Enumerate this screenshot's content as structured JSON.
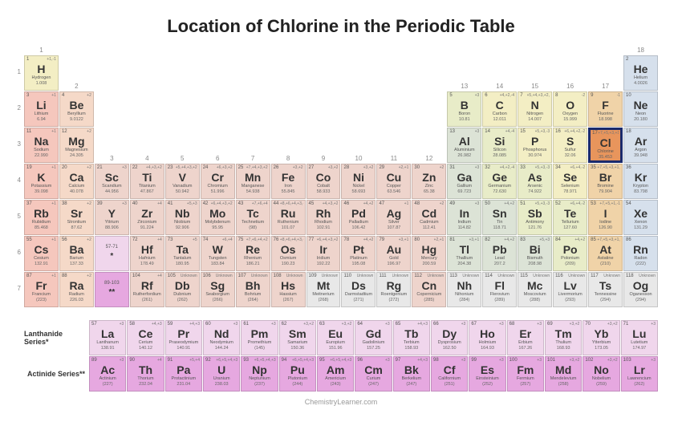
{
  "title": "Location of Chlorine in the Periodic Table",
  "footer": "ChemistryLearner.com",
  "highlight_number": 17,
  "colors": {
    "alkali": "#f5c7bd",
    "alkaline": "#f5d9c8",
    "transition": "#eed4cc",
    "post": "#dce3d6",
    "metalloid": "#e8ecc8",
    "nonmetal": "#f3eec4",
    "halogen": "#f0d3a8",
    "noble": "#d6e0ec",
    "lanth": "#f0d6ec",
    "act": "#e6a8e0",
    "highlight_bg": "#e8955c",
    "highlight_border": "#1a2a6c",
    "unknown": "#e8e8e8"
  },
  "series": {
    "lanth_label": "Lanthanide Series*",
    "act_label": "Actinide Series**"
  },
  "group_row1": {
    "1": "1",
    "18": "18"
  },
  "group_row2": {
    "2": "2",
    "13": "13",
    "14": "14",
    "15": "15",
    "16": "16",
    "17": "17"
  },
  "group_row4": {
    "3": "3",
    "4": "4",
    "5": "5",
    "6": "6",
    "7": "7",
    "8": "8",
    "9": "9",
    "10": "10",
    "11": "11",
    "12": "12"
  },
  "elements": [
    {
      "n": 1,
      "s": "H",
      "name": "Hydrogen",
      "m": "1.008",
      "ox": "+1,-1",
      "r": 1,
      "c": 1,
      "cat": "nonmetal"
    },
    {
      "n": 2,
      "s": "He",
      "name": "Helium",
      "m": "4.0026",
      "ox": "",
      "r": 1,
      "c": 18,
      "cat": "noble"
    },
    {
      "n": 3,
      "s": "Li",
      "name": "Lithium",
      "m": "6.94",
      "ox": "+1",
      "r": 2,
      "c": 1,
      "cat": "alkali"
    },
    {
      "n": 4,
      "s": "Be",
      "name": "Beryllium",
      "m": "9.0122",
      "ox": "+2",
      "r": 2,
      "c": 2,
      "cat": "alkaline"
    },
    {
      "n": 5,
      "s": "B",
      "name": "Boron",
      "m": "10.81",
      "ox": "+3",
      "r": 2,
      "c": 13,
      "cat": "metalloid"
    },
    {
      "n": 6,
      "s": "C",
      "name": "Carbon",
      "m": "12.011",
      "ox": "+4,+2,-4",
      "r": 2,
      "c": 14,
      "cat": "nonmetal"
    },
    {
      "n": 7,
      "s": "N",
      "name": "Nitrogen",
      "m": "14.007",
      "ox": "+5,+4,+3,+2,-3",
      "r": 2,
      "c": 15,
      "cat": "nonmetal"
    },
    {
      "n": 8,
      "s": "O",
      "name": "Oxygen",
      "m": "15.999",
      "ox": "-2",
      "r": 2,
      "c": 16,
      "cat": "nonmetal"
    },
    {
      "n": 9,
      "s": "F",
      "name": "Fluorine",
      "m": "18.998",
      "ox": "-1",
      "r": 2,
      "c": 17,
      "cat": "halogen"
    },
    {
      "n": 10,
      "s": "Ne",
      "name": "Neon",
      "m": "20.180",
      "ox": "",
      "r": 2,
      "c": 18,
      "cat": "noble"
    },
    {
      "n": 11,
      "s": "Na",
      "name": "Sodium",
      "m": "22.990",
      "ox": "+1",
      "r": 3,
      "c": 1,
      "cat": "alkali"
    },
    {
      "n": 12,
      "s": "Mg",
      "name": "Magnesium",
      "m": "24.305",
      "ox": "+2",
      "r": 3,
      "c": 2,
      "cat": "alkaline"
    },
    {
      "n": 13,
      "s": "Al",
      "name": "Aluminium",
      "m": "26.982",
      "ox": "+3",
      "r": 3,
      "c": 13,
      "cat": "post"
    },
    {
      "n": 14,
      "s": "Si",
      "name": "Silicon",
      "m": "28.085",
      "ox": "+4,-4",
      "r": 3,
      "c": 14,
      "cat": "metalloid"
    },
    {
      "n": 15,
      "s": "P",
      "name": "Phosphorus",
      "m": "30.974",
      "ox": "+5,+3,-3",
      "r": 3,
      "c": 15,
      "cat": "nonmetal"
    },
    {
      "n": 16,
      "s": "S",
      "name": "Sulfur",
      "m": "32.06",
      "ox": "+6,+4,+2,-2",
      "r": 3,
      "c": 16,
      "cat": "nonmetal"
    },
    {
      "n": 17,
      "s": "Cl",
      "name": "Chlorine",
      "m": "35.453",
      "ox": "+7,+5,+3,+1,-1",
      "r": 3,
      "c": 17,
      "cat": "halogen"
    },
    {
      "n": 18,
      "s": "Ar",
      "name": "Argon",
      "m": "39.948",
      "ox": "",
      "r": 3,
      "c": 18,
      "cat": "noble"
    },
    {
      "n": 19,
      "s": "K",
      "name": "Potassium",
      "m": "39.098",
      "ox": "+1",
      "r": 4,
      "c": 1,
      "cat": "alkali"
    },
    {
      "n": 20,
      "s": "Ca",
      "name": "Calcium",
      "m": "40.078",
      "ox": "+2",
      "r": 4,
      "c": 2,
      "cat": "alkaline"
    },
    {
      "n": 21,
      "s": "Sc",
      "name": "Scandium",
      "m": "44.956",
      "ox": "+3",
      "r": 4,
      "c": 3,
      "cat": "transition"
    },
    {
      "n": 22,
      "s": "Ti",
      "name": "Titanium",
      "m": "47.867",
      "ox": "+4,+3,+2",
      "r": 4,
      "c": 4,
      "cat": "transition"
    },
    {
      "n": 23,
      "s": "V",
      "name": "Vanadium",
      "m": "50.942",
      "ox": "+5,+4,+3,+2",
      "r": 4,
      "c": 5,
      "cat": "transition"
    },
    {
      "n": 24,
      "s": "Cr",
      "name": "Chromium",
      "m": "51.996",
      "ox": "+6,+3,+2",
      "r": 4,
      "c": 6,
      "cat": "transition"
    },
    {
      "n": 25,
      "s": "Mn",
      "name": "Manganese",
      "m": "54.938",
      "ox": "+7,+4,+3,+2",
      "r": 4,
      "c": 7,
      "cat": "transition"
    },
    {
      "n": 26,
      "s": "Fe",
      "name": "Iron",
      "m": "55.845",
      "ox": "+3,+2",
      "r": 4,
      "c": 8,
      "cat": "transition"
    },
    {
      "n": 27,
      "s": "Co",
      "name": "Cobalt",
      "m": "58.933",
      "ox": "+3,+2",
      "r": 4,
      "c": 9,
      "cat": "transition"
    },
    {
      "n": 28,
      "s": "Ni",
      "name": "Nickel",
      "m": "58.693",
      "ox": "+3,+2",
      "r": 4,
      "c": 10,
      "cat": "transition"
    },
    {
      "n": 29,
      "s": "Cu",
      "name": "Copper",
      "m": "63.546",
      "ox": "+2,+1",
      "r": 4,
      "c": 11,
      "cat": "transition"
    },
    {
      "n": 30,
      "s": "Zn",
      "name": "Zinc",
      "m": "65.38",
      "ox": "+2",
      "r": 4,
      "c": 12,
      "cat": "transition"
    },
    {
      "n": 31,
      "s": "Ga",
      "name": "Gallium",
      "m": "69.723",
      "ox": "+3",
      "r": 4,
      "c": 13,
      "cat": "post"
    },
    {
      "n": 32,
      "s": "Ge",
      "name": "Germanium",
      "m": "72.630",
      "ox": "+4,+2,-4",
      "r": 4,
      "c": 14,
      "cat": "metalloid"
    },
    {
      "n": 33,
      "s": "As",
      "name": "Arsenic",
      "m": "74.922",
      "ox": "+5,+3,-3",
      "r": 4,
      "c": 15,
      "cat": "metalloid"
    },
    {
      "n": 34,
      "s": "Se",
      "name": "Selenium",
      "m": "78.971",
      "ox": "+6,+4,-2",
      "r": 4,
      "c": 16,
      "cat": "nonmetal"
    },
    {
      "n": 35,
      "s": "Br",
      "name": "Bromine",
      "m": "79.904",
      "ox": "+7,+5,+3,+1,-1",
      "r": 4,
      "c": 17,
      "cat": "halogen"
    },
    {
      "n": 36,
      "s": "Kr",
      "name": "Krypton",
      "m": "83.798",
      "ox": "",
      "r": 4,
      "c": 18,
      "cat": "noble"
    },
    {
      "n": 37,
      "s": "Rb",
      "name": "Rubidium",
      "m": "85.468",
      "ox": "+1",
      "r": 5,
      "c": 1,
      "cat": "alkali"
    },
    {
      "n": 38,
      "s": "Sr",
      "name": "Strontium",
      "m": "87.62",
      "ox": "+2",
      "r": 5,
      "c": 2,
      "cat": "alkaline"
    },
    {
      "n": 39,
      "s": "Y",
      "name": "Yttrium",
      "m": "88.906",
      "ox": "+3",
      "r": 5,
      "c": 3,
      "cat": "transition"
    },
    {
      "n": 40,
      "s": "Zr",
      "name": "Zirconium",
      "m": "91.224",
      "ox": "+4",
      "r": 5,
      "c": 4,
      "cat": "transition"
    },
    {
      "n": 41,
      "s": "Nb",
      "name": "Niobium",
      "m": "92.906",
      "ox": "+5,+3",
      "r": 5,
      "c": 5,
      "cat": "transition"
    },
    {
      "n": 42,
      "s": "Mo",
      "name": "Molybdenum",
      "m": "95.95",
      "ox": "+6,+4,+3,+2",
      "r": 5,
      "c": 6,
      "cat": "transition"
    },
    {
      "n": 43,
      "s": "Tc",
      "name": "Technetium",
      "m": "(98)",
      "ox": "+7,+6,+4",
      "r": 5,
      "c": 7,
      "cat": "transition"
    },
    {
      "n": 44,
      "s": "Ru",
      "name": "Ruthenium",
      "m": "101.07",
      "ox": "+8,+6,+4,+3,+2",
      "r": 5,
      "c": 8,
      "cat": "transition"
    },
    {
      "n": 45,
      "s": "Rh",
      "name": "Rhodium",
      "m": "102.91",
      "ox": "+4,+3,+2",
      "r": 5,
      "c": 9,
      "cat": "transition"
    },
    {
      "n": 46,
      "s": "Pd",
      "name": "Palladium",
      "m": "106.42",
      "ox": "+4,+2",
      "r": 5,
      "c": 10,
      "cat": "transition"
    },
    {
      "n": 47,
      "s": "Ag",
      "name": "Silver",
      "m": "107.87",
      "ox": "+1",
      "r": 5,
      "c": 11,
      "cat": "transition"
    },
    {
      "n": 48,
      "s": "Cd",
      "name": "Cadmium",
      "m": "112.41",
      "ox": "+2",
      "r": 5,
      "c": 12,
      "cat": "transition"
    },
    {
      "n": 49,
      "s": "In",
      "name": "Indium",
      "m": "114.82",
      "ox": "+3",
      "r": 5,
      "c": 13,
      "cat": "post"
    },
    {
      "n": 50,
      "s": "Sn",
      "name": "Tin",
      "m": "118.71",
      "ox": "+4,+2",
      "r": 5,
      "c": 14,
      "cat": "post"
    },
    {
      "n": 51,
      "s": "Sb",
      "name": "Antimony",
      "m": "121.76",
      "ox": "+5,+3,-3",
      "r": 5,
      "c": 15,
      "cat": "metalloid"
    },
    {
      "n": 52,
      "s": "Te",
      "name": "Tellurium",
      "m": "127.60",
      "ox": "+6,+4,-2",
      "r": 5,
      "c": 16,
      "cat": "metalloid"
    },
    {
      "n": 53,
      "s": "I",
      "name": "Iodine",
      "m": "126.90",
      "ox": "+7,+5,+1,-1",
      "r": 5,
      "c": 17,
      "cat": "halogen"
    },
    {
      "n": 54,
      "s": "Xe",
      "name": "Xenon",
      "m": "131.29",
      "ox": "",
      "r": 5,
      "c": 18,
      "cat": "noble"
    },
    {
      "n": 55,
      "s": "Cs",
      "name": "Cesium",
      "m": "132.91",
      "ox": "+1",
      "r": 6,
      "c": 1,
      "cat": "alkali"
    },
    {
      "n": 56,
      "s": "Ba",
      "name": "Barium",
      "m": "137.33",
      "ox": "+2",
      "r": 6,
      "c": 2,
      "cat": "alkaline"
    },
    {
      "n": 0,
      "s": "*",
      "name": "57-71",
      "m": "",
      "ox": "",
      "r": 6,
      "c": 3,
      "cat": "lanth",
      "placeholder": true
    },
    {
      "n": 72,
      "s": "Hf",
      "name": "Hafnium",
      "m": "178.49",
      "ox": "+4",
      "r": 6,
      "c": 4,
      "cat": "transition"
    },
    {
      "n": 73,
      "s": "Ta",
      "name": "Tantalum",
      "m": "180.95",
      "ox": "+5",
      "r": 6,
      "c": 5,
      "cat": "transition"
    },
    {
      "n": 74,
      "s": "W",
      "name": "Tungsten",
      "m": "183.84",
      "ox": "+6,+4",
      "r": 6,
      "c": 6,
      "cat": "transition"
    },
    {
      "n": 75,
      "s": "Re",
      "name": "Rhenium",
      "m": "186.21",
      "ox": "+7,+6,+4,+2",
      "r": 6,
      "c": 7,
      "cat": "transition"
    },
    {
      "n": 76,
      "s": "Os",
      "name": "Osmium",
      "m": "190.23",
      "ox": "+8,+6,+4,+3,+2",
      "r": 6,
      "c": 8,
      "cat": "transition"
    },
    {
      "n": 77,
      "s": "Ir",
      "name": "Iridium",
      "m": "192.22",
      "ox": "+6,+4,+3,+2",
      "r": 6,
      "c": 9,
      "cat": "transition"
    },
    {
      "n": 78,
      "s": "Pt",
      "name": "Platinum",
      "m": "195.08",
      "ox": "+4,+2",
      "r": 6,
      "c": 10,
      "cat": "transition"
    },
    {
      "n": 79,
      "s": "Au",
      "name": "Gold",
      "m": "196.97",
      "ox": "+3,+1",
      "r": 6,
      "c": 11,
      "cat": "transition"
    },
    {
      "n": 80,
      "s": "Hg",
      "name": "Mercury",
      "m": "200.59",
      "ox": "+2,+1",
      "r": 6,
      "c": 12,
      "cat": "transition"
    },
    {
      "n": 81,
      "s": "Tl",
      "name": "Thallium",
      "m": "204.38",
      "ox": "+3,+1",
      "r": 6,
      "c": 13,
      "cat": "post"
    },
    {
      "n": 82,
      "s": "Pb",
      "name": "Lead",
      "m": "207.2",
      "ox": "+4,+2",
      "r": 6,
      "c": 14,
      "cat": "post"
    },
    {
      "n": 83,
      "s": "Bi",
      "name": "Bismuth",
      "m": "208.98",
      "ox": "+5,+3",
      "r": 6,
      "c": 15,
      "cat": "post"
    },
    {
      "n": 84,
      "s": "Po",
      "name": "Polonium",
      "m": "(209)",
      "ox": "+4,+2",
      "r": 6,
      "c": 16,
      "cat": "metalloid"
    },
    {
      "n": 85,
      "s": "At",
      "name": "Astatine",
      "m": "(210)",
      "ox": "+7,+5,+3,+1,-1",
      "r": 6,
      "c": 17,
      "cat": "halogen"
    },
    {
      "n": 86,
      "s": "Rn",
      "name": "Radon",
      "m": "(222)",
      "ox": "",
      "r": 6,
      "c": 18,
      "cat": "noble"
    },
    {
      "n": 87,
      "s": "Fr",
      "name": "Francium",
      "m": "(223)",
      "ox": "+1",
      "r": 7,
      "c": 1,
      "cat": "alkali"
    },
    {
      "n": 88,
      "s": "Ra",
      "name": "Radium",
      "m": "226.03",
      "ox": "+2",
      "r": 7,
      "c": 2,
      "cat": "alkaline"
    },
    {
      "n": 0,
      "s": "**",
      "name": "89-103",
      "m": "",
      "ox": "",
      "r": 7,
      "c": 3,
      "cat": "act",
      "placeholder": true
    },
    {
      "n": 104,
      "s": "Rf",
      "name": "Rutherfordium",
      "m": "(261)",
      "ox": "+4",
      "r": 7,
      "c": 4,
      "cat": "transition"
    },
    {
      "n": 105,
      "s": "Db",
      "name": "Dubnium",
      "m": "(262)",
      "ox": "Unknown",
      "r": 7,
      "c": 5,
      "cat": "transition"
    },
    {
      "n": 106,
      "s": "Sg",
      "name": "Seaborgium",
      "m": "(266)",
      "ox": "Unknown",
      "r": 7,
      "c": 6,
      "cat": "transition"
    },
    {
      "n": 107,
      "s": "Bh",
      "name": "Bohrium",
      "m": "(264)",
      "ox": "Unknown",
      "r": 7,
      "c": 7,
      "cat": "transition"
    },
    {
      "n": 108,
      "s": "Hs",
      "name": "Hassium",
      "m": "(267)",
      "ox": "Unknown",
      "r": 7,
      "c": 8,
      "cat": "transition"
    },
    {
      "n": 109,
      "s": "Mt",
      "name": "Meitnerium",
      "m": "(268)",
      "ox": "Unknown",
      "r": 7,
      "c": 9,
      "cat": "unknown"
    },
    {
      "n": 110,
      "s": "Ds",
      "name": "Darmstadtium",
      "m": "(271)",
      "ox": "Unknown",
      "r": 7,
      "c": 10,
      "cat": "unknown"
    },
    {
      "n": 111,
      "s": "Rg",
      "name": "Roentgenium",
      "m": "(272)",
      "ox": "Unknown",
      "r": 7,
      "c": 11,
      "cat": "unknown"
    },
    {
      "n": 112,
      "s": "Cn",
      "name": "Copernicium",
      "m": "(285)",
      "ox": "Unknown",
      "r": 7,
      "c": 12,
      "cat": "transition"
    },
    {
      "n": 113,
      "s": "Nh",
      "name": "Nihonium",
      "m": "(284)",
      "ox": "Unknown",
      "r": 7,
      "c": 13,
      "cat": "unknown"
    },
    {
      "n": 114,
      "s": "Fl",
      "name": "Flerovium",
      "m": "(289)",
      "ox": "Unknown",
      "r": 7,
      "c": 14,
      "cat": "unknown"
    },
    {
      "n": 115,
      "s": "Mc",
      "name": "Moscovium",
      "m": "(288)",
      "ox": "Unknown",
      "r": 7,
      "c": 15,
      "cat": "unknown"
    },
    {
      "n": 116,
      "s": "Lv",
      "name": "Livermorium",
      "m": "(293)",
      "ox": "Unknown",
      "r": 7,
      "c": 16,
      "cat": "unknown"
    },
    {
      "n": 117,
      "s": "Ts",
      "name": "Tennessine",
      "m": "(294)",
      "ox": "Unknown",
      "r": 7,
      "c": 17,
      "cat": "unknown"
    },
    {
      "n": 118,
      "s": "Og",
      "name": "Oganesson",
      "m": "(294)",
      "ox": "Unknown",
      "r": 7,
      "c": 18,
      "cat": "unknown"
    }
  ],
  "lanthanides": [
    {
      "n": 57,
      "s": "La",
      "name": "Lanthanum",
      "m": "138.91",
      "ox": "+3",
      "cat": "lanth"
    },
    {
      "n": 58,
      "s": "Ce",
      "name": "Cerium",
      "m": "140.12",
      "ox": "+4,+3",
      "cat": "lanth"
    },
    {
      "n": 59,
      "s": "Pr",
      "name": "Praseodymium",
      "m": "140.91",
      "ox": "+4,+3",
      "cat": "lanth"
    },
    {
      "n": 60,
      "s": "Nd",
      "name": "Neodymium",
      "m": "144.24",
      "ox": "+3",
      "cat": "lanth"
    },
    {
      "n": 61,
      "s": "Pm",
      "name": "Promethium",
      "m": "(145)",
      "ox": "+3",
      "cat": "lanth"
    },
    {
      "n": 62,
      "s": "Sm",
      "name": "Samarium",
      "m": "150.36",
      "ox": "+3,+2",
      "cat": "lanth"
    },
    {
      "n": 63,
      "s": "Eu",
      "name": "Europium",
      "m": "151.96",
      "ox": "+3,+2",
      "cat": "lanth"
    },
    {
      "n": 64,
      "s": "Gd",
      "name": "Gadolinium",
      "m": "157.25",
      "ox": "+3",
      "cat": "lanth"
    },
    {
      "n": 65,
      "s": "Tb",
      "name": "Terbium",
      "m": "158.93",
      "ox": "+4,+3",
      "cat": "lanth"
    },
    {
      "n": 66,
      "s": "Dy",
      "name": "Dysprosium",
      "m": "162.50",
      "ox": "+3",
      "cat": "lanth"
    },
    {
      "n": 67,
      "s": "Ho",
      "name": "Holmium",
      "m": "164.93",
      "ox": "+3",
      "cat": "lanth"
    },
    {
      "n": 68,
      "s": "Er",
      "name": "Erbium",
      "m": "167.26",
      "ox": "+3",
      "cat": "lanth"
    },
    {
      "n": 69,
      "s": "Tm",
      "name": "Thulium",
      "m": "168.93",
      "ox": "+3,+2",
      "cat": "lanth"
    },
    {
      "n": 70,
      "s": "Yb",
      "name": "Ytterbium",
      "m": "173.05",
      "ox": "+3,+2",
      "cat": "lanth"
    },
    {
      "n": 71,
      "s": "Lu",
      "name": "Lutetium",
      "m": "174.97",
      "ox": "+3",
      "cat": "lanth"
    }
  ],
  "actinides": [
    {
      "n": 89,
      "s": "Ac",
      "name": "Actinium",
      "m": "(227)",
      "ox": "+3",
      "cat": "act"
    },
    {
      "n": 90,
      "s": "Th",
      "name": "Thorium",
      "m": "232.04",
      "ox": "+4",
      "cat": "act"
    },
    {
      "n": 91,
      "s": "Pa",
      "name": "Protactinium",
      "m": "231.04",
      "ox": "+5,+4",
      "cat": "act"
    },
    {
      "n": 92,
      "s": "U",
      "name": "Uranium",
      "m": "238.03",
      "ox": "+6,+5,+4,+3",
      "cat": "act"
    },
    {
      "n": 93,
      "s": "Np",
      "name": "Neptunium",
      "m": "(237)",
      "ox": "+6,+5,+4,+3",
      "cat": "act"
    },
    {
      "n": 94,
      "s": "Pu",
      "name": "Plutonium",
      "m": "(244)",
      "ox": "+6,+5,+4,+3",
      "cat": "act"
    },
    {
      "n": 95,
      "s": "Am",
      "name": "Americium",
      "m": "(243)",
      "ox": "+6,+5,+4,+3",
      "cat": "act"
    },
    {
      "n": 96,
      "s": "Cm",
      "name": "Curium",
      "m": "(247)",
      "ox": "+3",
      "cat": "act"
    },
    {
      "n": 97,
      "s": "Bk",
      "name": "Berkelium",
      "m": "(247)",
      "ox": "+4,+3",
      "cat": "act"
    },
    {
      "n": 98,
      "s": "Cf",
      "name": "Californium",
      "m": "(251)",
      "ox": "+3",
      "cat": "act"
    },
    {
      "n": 99,
      "s": "Es",
      "name": "Einsteinium",
      "m": "(252)",
      "ox": "+3",
      "cat": "act"
    },
    {
      "n": 100,
      "s": "Fm",
      "name": "Fermium",
      "m": "(257)",
      "ox": "+3",
      "cat": "act"
    },
    {
      "n": 101,
      "s": "Md",
      "name": "Mendelevium",
      "m": "(258)",
      "ox": "+3,+2",
      "cat": "act"
    },
    {
      "n": 102,
      "s": "No",
      "name": "Nobelium",
      "m": "(259)",
      "ox": "+3,+2",
      "cat": "act"
    },
    {
      "n": 103,
      "s": "Lr",
      "name": "Lawrencium",
      "m": "(262)",
      "ox": "+3",
      "cat": "act"
    }
  ]
}
